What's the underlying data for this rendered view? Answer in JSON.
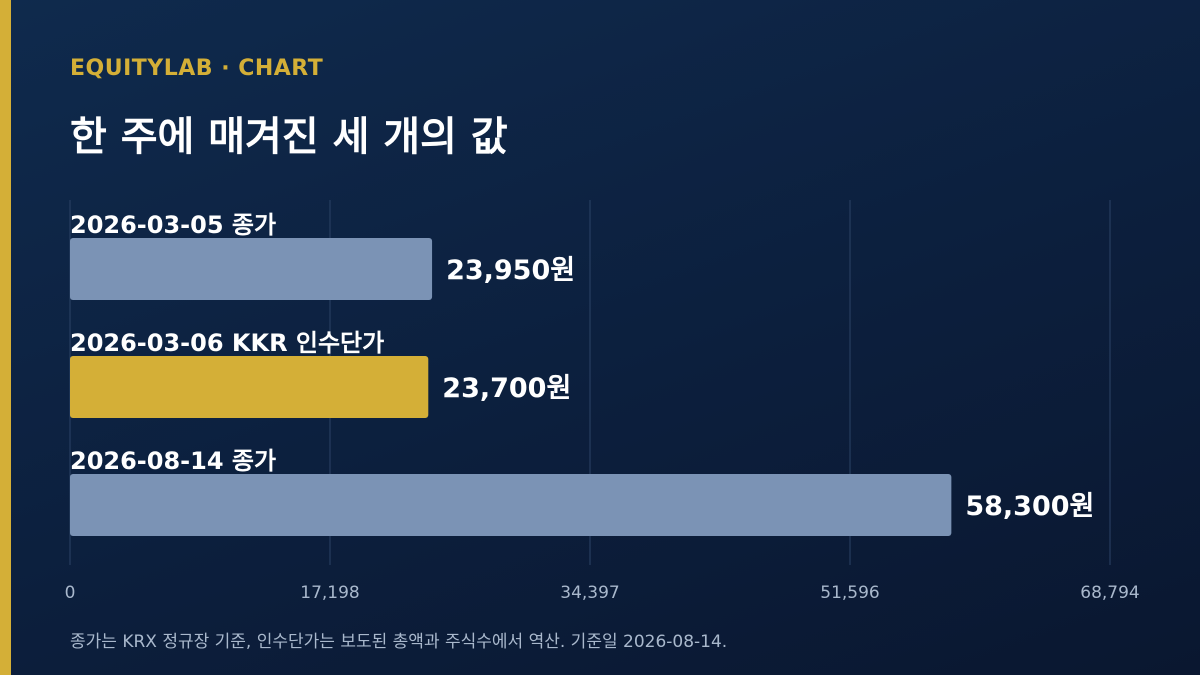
{
  "header": {
    "eyebrow": "EQUITYLAB · CHART",
    "title": "한 주에 매겨진 세 개의 값"
  },
  "colors": {
    "accent": "#d4af37",
    "bar_default": "#7b93b5",
    "bar_highlight": "#d4af37",
    "grid": "#2c4366"
  },
  "chart_data": {
    "type": "bar",
    "orientation": "horizontal",
    "title": "한 주에 매겨진 세 개의 값",
    "categories": [
      "2026-03-05 종가",
      "2026-03-06 KKR 인수단가",
      "2026-08-14 종가"
    ],
    "values": [
      23950,
      23700,
      58300
    ],
    "value_labels": [
      "23,950원",
      "23,700원",
      "58,300원"
    ],
    "highlight_index": 1,
    "xlim": [
      0,
      68794
    ],
    "ticks": [
      0,
      17198,
      34397,
      51596,
      68794
    ],
    "tick_labels": [
      "0",
      "17,198",
      "34,397",
      "51,596",
      "68,794"
    ],
    "grid": true
  },
  "footnote": "종가는 KRX 정규장 기준, 인수단가는 보도된 총액과 주식수에서 역산. 기준일 2026-08-14."
}
